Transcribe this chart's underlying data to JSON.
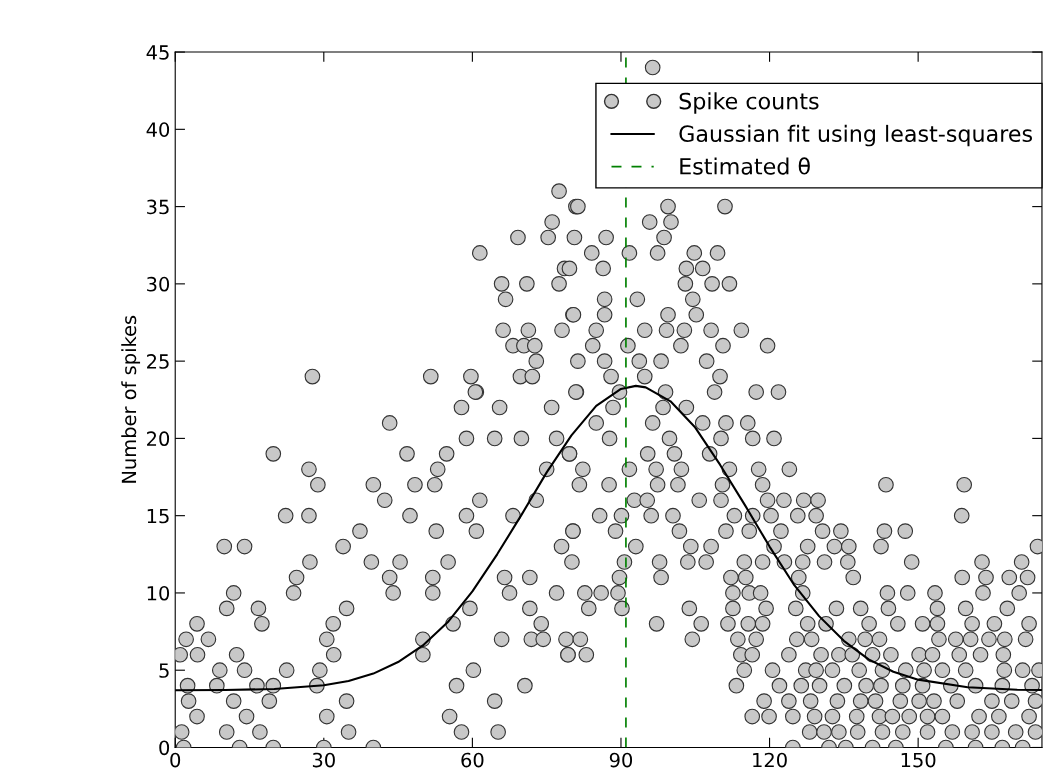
{
  "chart_data": {
    "type": "scatter",
    "ylabel": "Number of spikes",
    "xlim": [
      0,
      175
    ],
    "xticks": [
      0,
      30,
      60,
      90,
      120,
      150
    ],
    "ylim": [
      0,
      45
    ],
    "yticks": [
      0,
      5,
      10,
      15,
      20,
      25,
      30,
      35,
      40,
      45
    ],
    "grid": false,
    "legend": "top right",
    "marker": "circle",
    "ref_lines": [
      {
        "axis": "x",
        "value": 91,
        "label": "Estimated θ",
        "color": "#008000",
        "line_style": "dashed"
      }
    ],
    "series": [
      {
        "name": "Spike counts",
        "color": "#c8c8c8",
        "x": [
          9.9,
          14,
          19.8,
          27,
          28.8,
          22.3,
          27,
          27.2,
          4.4,
          11.8,
          10.4,
          16.8,
          17.5,
          2.2,
          6.7,
          1,
          4.5,
          12.4,
          9,
          14,
          2.5,
          8.4,
          16.5,
          19.8,
          2.7,
          11.8,
          19,
          4.4,
          14.4,
          1.3,
          10.4,
          17.1,
          1.7,
          13,
          19.8,
          22.5,
          23.9,
          24.5,
          33.9,
          37.3,
          39.6,
          40,
          42.3,
          43.3,
          46.8,
          47.4,
          48.4,
          45.4,
          43.3,
          44,
          34.6,
          31.9,
          30.6,
          32,
          29.2,
          28.6,
          34.6,
          30.6,
          35,
          30,
          40,
          50,
          50,
          52,
          52,
          52.7,
          52.4,
          53,
          54.8,
          55.1,
          56.1,
          56.8,
          55.4,
          57.8,
          58.8,
          57.8,
          60.8,
          58.8,
          61.5,
          60.8,
          59.5,
          60.2,
          64.5,
          65.2,
          65.9,
          64.5,
          65.5,
          66.5,
          67.5,
          69.9,
          70.6,
          68.2,
          71.6,
          71.6,
          71.9,
          73.9,
          72.9,
          74.3,
          75,
          77,
          77,
          78,
          79.3,
          80.3,
          79.6,
          76,
          81,
          27.7,
          51.6,
          59.7,
          60.6,
          61.5,
          65.9,
          66.7,
          69.2,
          71,
          66.2,
          71.3,
          68.2,
          70.4,
          72.6,
          72.9,
          69.7,
          72.1,
          75.3,
          76.1,
          77.5,
          78.6,
          79.6,
          78.1,
          80.3,
          77.5,
          80.9,
          96.4,
          81.3,
          99.5,
          111,
          95.8,
          100.1,
          80.6,
          87,
          98.7,
          84.1,
          91.7,
          97.4,
          104.8,
          109.5,
          86.4,
          103.2,
          106.5,
          103,
          108.4,
          111.9,
          86.7,
          93.3,
          104.5,
          80.4,
          86.7,
          99.5,
          105.2,
          85,
          94.8,
          99.2,
          102.8,
          108.2,
          114.3,
          84.3,
          91.4,
          102.1,
          110.6,
          119.6,
          81.3,
          86.7,
          93.7,
          98.1,
          107.3,
          88,
          94.8,
          110,
          80.9,
          89.7,
          99,
          108.9,
          117.3,
          121.8,
          88.4,
          98.5,
          103.2,
          85,
          96.4,
          106.5,
          111.2,
          115.6,
          87.7,
          99.8,
          110.2,
          116.6,
          120.9,
          79.6,
          95.4,
          100.8,
          107.9,
          82.3,
          91.7,
          97.1,
          102.2,
          111.9,
          117.8,
          124,
          81.6,
          87.6,
          97.4,
          101.5,
          110.5,
          118.6,
          143.5,
          159.3,
          92.7,
          95.3,
          105.8,
          110.2,
          119.6,
          122.9,
          126.9,
          129.8,
          85.7,
          90.1,
          96.1,
          100.5,
          112.9,
          116.6,
          120.3,
          125.7,
          129.4,
          158.8,
          80.3,
          88.9,
          101.8,
          111.2,
          115.9,
          122.3,
          130.7,
          134.4,
          143.2,
          147.4,
          93,
          104.1,
          108.2,
          120.9,
          127.7,
          133.1,
          136,
          142.5,
          174.1,
          80.1,
          90.7,
          97.8,
          103.5,
          107.2,
          114.9,
          118.6,
          123,
          126.7,
          131.1,
          135.8,
          148.7,
          162.9,
          170.9,
          89.7,
          98.1,
          112.2,
          115.2,
          125.9,
          136.9,
          158.9,
          163.7,
          168.4,
          172.1,
          82.7,
          86,
          89.4,
          112.6,
          115.9,
          118.2,
          126.7,
          143.8,
          147.9,
          153.4,
          163.1,
          170.4,
          83.5,
          90.2,
          103.8,
          112.6,
          119.3,
          125.3,
          133.5,
          138.4,
          144,
          153.9,
          159.6,
          168,
          97.2,
          106.2,
          111.6,
          115.7,
          118.6,
          127.7,
          131.4,
          140.1,
          145.9,
          150.9,
          153.9,
          160.9,
          165.4,
          172.4,
          78.9,
          81.8,
          104.4,
          113.6,
          117.3,
          125.5,
          128.5,
          136,
          139.3,
          142.2,
          154.2,
          157.6,
          160.6,
          164.3,
          167.5,
          171.7,
          79.3,
          83,
          114.2,
          116.5,
          123.9,
          130.4,
          134,
          136.7,
          140.8,
          144.5,
          150.2,
          152.9,
          158.3,
          162.6,
          167.2,
          114.9,
          120.6,
          127.3,
          129.4,
          132.7,
          138.1,
          142.8,
          147.5,
          151.2,
          154.9,
          159.6,
          167.4,
          171.1,
          174.4,
          113.3,
          122,
          126.4,
          130.1,
          135.1,
          139.5,
          142.5,
          146.9,
          150.9,
          156.6,
          161.6,
          167,
          173,
          118.9,
          123.9,
          128.3,
          133.7,
          138.4,
          141.4,
          146.4,
          150.2,
          153.2,
          157.9,
          164.9,
          168.9,
          173.7,
          116.5,
          119.9,
          124.7,
          129.1,
          132.7,
          137.6,
          142.2,
          144.8,
          148.2,
          151.9,
          154.9,
          162.3,
          166.3,
          172.4,
          128.1,
          131,
          134,
          137.8,
          142.8,
          146.9,
          151.9,
          156.9,
          160.9,
          164.9,
          169.7,
          173.7,
          124.7,
          132,
          135.4,
          140.8,
          145.5,
          155.6,
          161.6,
          167,
          171.1
        ],
        "values": [
          13,
          13,
          19,
          18,
          17,
          15,
          15,
          12,
          8,
          10,
          9,
          9,
          8,
          7,
          7,
          6,
          6,
          6,
          5,
          5,
          4,
          4,
          4,
          4,
          3,
          3,
          3,
          2,
          2,
          1,
          1,
          1,
          0,
          0,
          0,
          5,
          10,
          11,
          13,
          14,
          12,
          17,
          16,
          21,
          19,
          15,
          17,
          12,
          11,
          10,
          9,
          8,
          7,
          6,
          5,
          4,
          3,
          2,
          1,
          0,
          0,
          6,
          7,
          10,
          11,
          14,
          17,
          18,
          19,
          12,
          8,
          4,
          2,
          1,
          20,
          22,
          23,
          15,
          16,
          14,
          9,
          5,
          3,
          1,
          7,
          20,
          22,
          11,
          10,
          20,
          4,
          15,
          11,
          9,
          7,
          8,
          16,
          7,
          18,
          20,
          10,
          13,
          6,
          14,
          19,
          22,
          23,
          24,
          24,
          24,
          23,
          32,
          30,
          29,
          33,
          30,
          27,
          27,
          26,
          26,
          26,
          25,
          24,
          24,
          33,
          34,
          30,
          31,
          31,
          27,
          28,
          36,
          35,
          44,
          35,
          35,
          35,
          34,
          34,
          33,
          33,
          33,
          32,
          32,
          32,
          32,
          32,
          31,
          31,
          31,
          30,
          30,
          30,
          29,
          29,
          29,
          28,
          28,
          28,
          28,
          27,
          27,
          27,
          27,
          27,
          27,
          26,
          26,
          26,
          26,
          26,
          25,
          25,
          25,
          25,
          25,
          24,
          24,
          24,
          23,
          23,
          23,
          23,
          23,
          23,
          22,
          22,
          22,
          21,
          21,
          21,
          21,
          21,
          20,
          20,
          20,
          20,
          20,
          19,
          19,
          19,
          19,
          18,
          18,
          18,
          18,
          18,
          18,
          18,
          17,
          17,
          17,
          17,
          17,
          17,
          17,
          17,
          16,
          16,
          16,
          16,
          16,
          16,
          16,
          16,
          15,
          15,
          15,
          15,
          15,
          15,
          15,
          15,
          15,
          15,
          14,
          14,
          14,
          14,
          14,
          14,
          14,
          14,
          14,
          14,
          13,
          13,
          13,
          13,
          13,
          13,
          13,
          13,
          13,
          12,
          12,
          12,
          12,
          12,
          12,
          12,
          12,
          12,
          12,
          12,
          12,
          12,
          12,
          11,
          11,
          11,
          11,
          11,
          11,
          11,
          11,
          11,
          11,
          10,
          10,
          10,
          10,
          10,
          10,
          10,
          10,
          10,
          10,
          10,
          10,
          9,
          9,
          9,
          9,
          9,
          9,
          9,
          9,
          9,
          9,
          9,
          9,
          8,
          8,
          8,
          8,
          8,
          8,
          8,
          8,
          8,
          8,
          8,
          8,
          8,
          8,
          7,
          7,
          7,
          7,
          7,
          7,
          7,
          7,
          7,
          7,
          7,
          7,
          7,
          7,
          7,
          7,
          6,
          6,
          6,
          6,
          6,
          6,
          6,
          6,
          6,
          6,
          6,
          6,
          6,
          6,
          6,
          5,
          5,
          5,
          5,
          5,
          5,
          5,
          5,
          5,
          5,
          5,
          5,
          5,
          5,
          4,
          4,
          4,
          4,
          4,
          4,
          4,
          4,
          4,
          4,
          4,
          4,
          4,
          3,
          3,
          3,
          3,
          3,
          3,
          3,
          3,
          3,
          3,
          3,
          3,
          3,
          2,
          2,
          2,
          2,
          2,
          2,
          2,
          2,
          2,
          2,
          2,
          2,
          2,
          2,
          1,
          1,
          1,
          1,
          1,
          1,
          1,
          1,
          1,
          1,
          1,
          1,
          0,
          0,
          0,
          0,
          0,
          0,
          0,
          0,
          0
        ]
      },
      {
        "name": "Gaussian fit using least-squares",
        "type": "line",
        "color": "#000000",
        "marker": "none",
        "x": [
          0,
          10,
          20,
          30,
          35,
          40,
          45,
          50,
          55,
          60,
          65,
          70,
          75,
          80,
          85,
          90,
          93,
          95,
          100,
          105,
          110,
          115,
          120,
          125,
          130,
          135,
          140,
          145,
          150,
          160,
          170,
          175
        ],
        "values": [
          3.7,
          3.72,
          3.78,
          4.03,
          4.3,
          4.78,
          5.53,
          6.6,
          8.1,
          10.1,
          12.5,
          15.1,
          17.8,
          20.2,
          22.1,
          23.2,
          23.4,
          23.3,
          22.4,
          20.7,
          18.3,
          15.7,
          13.0,
          10.5,
          8.5,
          6.9,
          5.7,
          4.9,
          4.39,
          3.9,
          3.74,
          3.72
        ]
      }
    ]
  }
}
